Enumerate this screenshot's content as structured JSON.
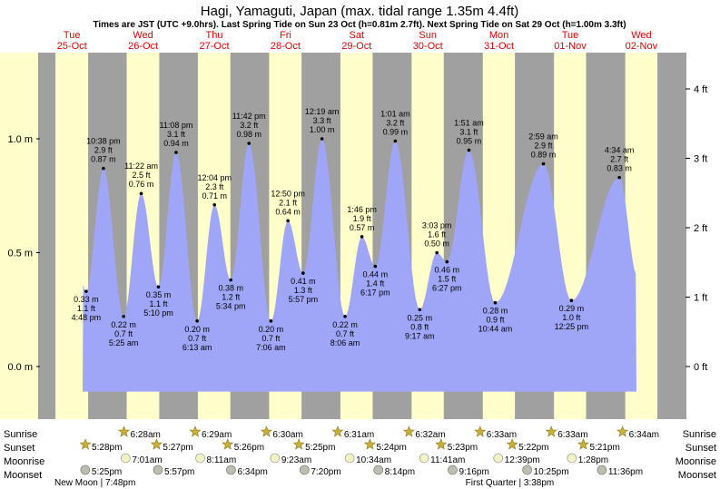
{
  "title": "Hagi, Yamaguti, Japan (max. tidal range 1.35m 4.4ft)",
  "subtitle": "Times are JST (UTC +9.0hrs). Last Spring Tide on Sun 23 Oct (h=0.81m 2.7ft). Next Spring Tide on Sat 29 Oct (h=1.00m 3.3ft)",
  "colors": {
    "day": "#ffffcc",
    "night": "#a0a0a0",
    "tide": "#9fa6f8",
    "day_header": "#dd0000",
    "moon_icon": "#bdbdb0",
    "moon_icon_light": "#f2f2c4",
    "star": "#c8b03a"
  },
  "chart_data": {
    "type": "area",
    "y_unit_left": "m",
    "y_unit_right": "ft",
    "ylim_m": [
      -0.2,
      1.37
    ],
    "left_ticks": [
      "0.0 m",
      "0.5 m",
      "1.0 m"
    ],
    "right_ticks": [
      "0 ft",
      "1 ft",
      "2 ft",
      "3 ft",
      "4 ft"
    ],
    "days": [
      {
        "day": "Tue",
        "date": "25-Oct"
      },
      {
        "day": "Wed",
        "date": "26-Oct"
      },
      {
        "day": "Thu",
        "date": "27-Oct"
      },
      {
        "day": "Fri",
        "date": "28-Oct"
      },
      {
        "day": "Sat",
        "date": "29-Oct"
      },
      {
        "day": "Sun",
        "date": "30-Oct"
      },
      {
        "day": "Mon",
        "date": "31-Oct"
      },
      {
        "day": "Tue",
        "date": "01-Nov"
      },
      {
        "day": "Wed",
        "date": "02-Nov"
      }
    ],
    "tide_events": [
      {
        "time": "4:48 pm",
        "m": "0.33 m",
        "ft": "1.1 ft",
        "type": "low",
        "day": 0,
        "hour": 16.8,
        "h": 0.33
      },
      {
        "time": "10:38 pm",
        "m": "0.87 m",
        "ft": "2.9 ft",
        "type": "high",
        "day": 0,
        "hour": 22.63,
        "h": 0.87
      },
      {
        "time": "5:25 am",
        "m": "0.22 m",
        "ft": "0.7 ft",
        "type": "low",
        "day": 1,
        "hour": 5.42,
        "h": 0.22
      },
      {
        "time": "11:22 am",
        "m": "0.76 m",
        "ft": "2.5 ft",
        "type": "high",
        "day": 1,
        "hour": 11.37,
        "h": 0.76
      },
      {
        "time": "5:10 pm",
        "m": "0.35 m",
        "ft": "1.1 ft",
        "type": "low",
        "day": 1,
        "hour": 17.17,
        "h": 0.35
      },
      {
        "time": "11:08 pm",
        "m": "0.94 m",
        "ft": "3.1 ft",
        "type": "high",
        "day": 1,
        "hour": 23.13,
        "h": 0.94
      },
      {
        "time": "6:13 am",
        "m": "0.20 m",
        "ft": "0.7 ft",
        "type": "low",
        "day": 2,
        "hour": 6.22,
        "h": 0.2
      },
      {
        "time": "12:04 pm",
        "m": "0.71 m",
        "ft": "2.3 ft",
        "type": "high",
        "day": 2,
        "hour": 12.07,
        "h": 0.71
      },
      {
        "time": "5:34 pm",
        "m": "0.38 m",
        "ft": "1.2 ft",
        "type": "low",
        "day": 2,
        "hour": 17.57,
        "h": 0.38
      },
      {
        "time": "11:42 pm",
        "m": "0.98 m",
        "ft": "3.2 ft",
        "type": "high",
        "day": 2,
        "hour": 23.7,
        "h": 0.98
      },
      {
        "time": "7:06 am",
        "m": "0.20 m",
        "ft": "0.7 ft",
        "type": "low",
        "day": 3,
        "hour": 7.1,
        "h": 0.2
      },
      {
        "time": "12:50 pm",
        "m": "0.64 m",
        "ft": "2.1 ft",
        "type": "high",
        "day": 3,
        "hour": 12.83,
        "h": 0.64
      },
      {
        "time": "5:57 pm",
        "m": "0.41 m",
        "ft": "1.3 ft",
        "type": "low",
        "day": 3,
        "hour": 17.95,
        "h": 0.41
      },
      {
        "time": "12:19 am",
        "m": "1.00 m",
        "ft": "3.3 ft",
        "type": "high",
        "day": 4,
        "hour": 0.32,
        "h": 1.0
      },
      {
        "time": "8:06 am",
        "m": "0.22 m",
        "ft": "0.7 ft",
        "type": "low",
        "day": 4,
        "hour": 8.1,
        "h": 0.22
      },
      {
        "time": "1:46 pm",
        "m": "0.57 m",
        "ft": "1.9 ft",
        "type": "high",
        "day": 4,
        "hour": 13.77,
        "h": 0.57
      },
      {
        "time": "6:17 pm",
        "m": "0.44 m",
        "ft": "1.4 ft",
        "type": "low",
        "day": 4,
        "hour": 18.28,
        "h": 0.44
      },
      {
        "time": "1:01 am",
        "m": "0.99 m",
        "ft": "3.2 ft",
        "type": "high",
        "day": 5,
        "hour": 1.02,
        "h": 0.99
      },
      {
        "time": "9:17 am",
        "m": "0.25 m",
        "ft": "0.8 ft",
        "type": "low",
        "day": 5,
        "hour": 9.28,
        "h": 0.25
      },
      {
        "time": "3:03 pm",
        "m": "0.50 m",
        "ft": "1.6 ft",
        "type": "high",
        "day": 5,
        "hour": 15.05,
        "h": 0.5
      },
      {
        "time": "6:27 pm",
        "m": "0.46 m",
        "ft": "1.5 ft",
        "type": "low",
        "day": 5,
        "hour": 18.45,
        "h": 0.46
      },
      {
        "time": "1:51 am",
        "m": "0.95 m",
        "ft": "3.1 ft",
        "type": "high",
        "day": 6,
        "hour": 1.85,
        "h": 0.95
      },
      {
        "time": "10:44 am",
        "m": "0.28 m",
        "ft": "0.9 ft",
        "type": "low",
        "day": 6,
        "hour": 10.73,
        "h": 0.28
      },
      {
        "time": "2:59 am",
        "m": "0.89 m",
        "ft": "2.9 ft",
        "type": "high",
        "day": 7,
        "hour": 2.98,
        "h": 0.89
      },
      {
        "time": "12:25 pm",
        "m": "0.29 m",
        "ft": "1.0 ft",
        "type": "low",
        "day": 7,
        "hour": 12.42,
        "h": 0.29
      },
      {
        "time": "4:34 am",
        "m": "0.83 m",
        "ft": "2.7 ft",
        "type": "high",
        "day": 8,
        "hour": 4.57,
        "h": 0.83
      }
    ],
    "sunrise": [
      "6:28am",
      "6:29am",
      "6:30am",
      "6:31am",
      "6:32am",
      "6:33am",
      "6:33am",
      "6:34am"
    ],
    "sunset": [
      "5:28pm",
      "5:27pm",
      "5:26pm",
      "5:25pm",
      "5:24pm",
      "5:23pm",
      "5:22pm",
      "5:21pm"
    ],
    "moonrise": [
      "7:01am",
      "8:11am",
      "9:23am",
      "10:34am",
      "11:41am",
      "12:39pm",
      "1:28pm"
    ],
    "moonset": [
      "5:25pm",
      "5:57pm",
      "6:34pm",
      "7:20pm",
      "8:14pm",
      "9:16pm",
      "10:25pm",
      "11:36pm"
    ],
    "row_labels": {
      "sunrise": "Sunrise",
      "sunset": "Sunset",
      "moonrise": "Moonrise",
      "moonset": "Moonset"
    },
    "moon_phases": [
      {
        "label": "New Moon",
        "time": "7:48pm",
        "day": 0,
        "hour": 19.8
      },
      {
        "label": "First Quarter",
        "time": "3:38pm",
        "day": 6,
        "hour": 15.63
      }
    ]
  }
}
